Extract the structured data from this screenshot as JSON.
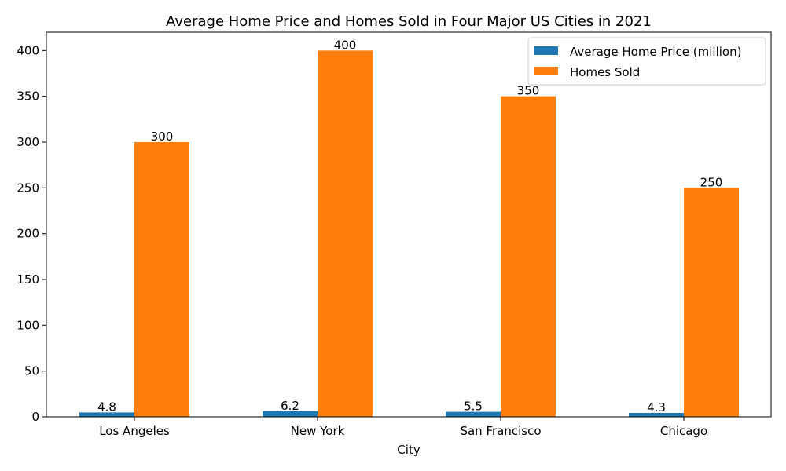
{
  "chart_data": {
    "type": "bar",
    "title": "Average Home Price and Homes Sold in Four Major US Cities in 2021",
    "xlabel": "City",
    "ylabel": "",
    "categories": [
      "Los Angeles",
      "New York",
      "San Francisco",
      "Chicago"
    ],
    "series": [
      {
        "name": "Average Home Price (million)",
        "values": [
          4.8,
          6.2,
          5.5,
          4.3
        ],
        "color": "#1f77b4"
      },
      {
        "name": "Homes Sold",
        "values": [
          300,
          400,
          350,
          250
        ],
        "color": "#ff7f0e"
      }
    ],
    "ylim": [
      0,
      420
    ],
    "yticks": [
      0,
      50,
      100,
      150,
      200,
      250,
      300,
      350,
      400
    ],
    "legend": "top-right",
    "grid": false
  }
}
